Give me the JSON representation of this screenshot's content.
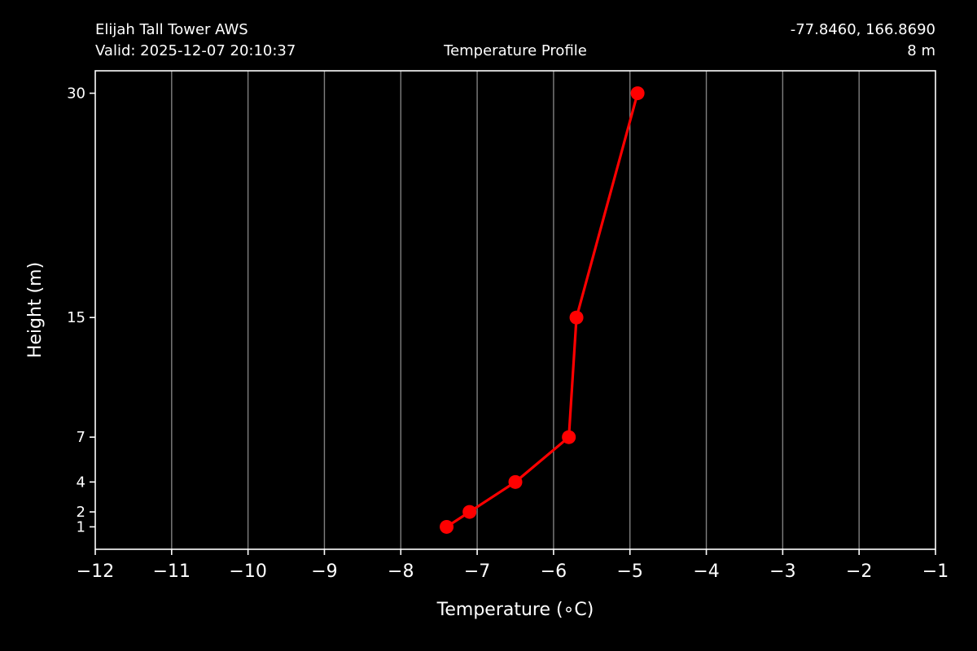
{
  "header": {
    "station": "Elijah Tall Tower AWS",
    "valid": "Valid: 2025-12-07 20:10:37",
    "title": "Temperature Profile",
    "coords": "-77.8460, 166.8690",
    "elevation": "8 m"
  },
  "chart_data": {
    "type": "line",
    "title": "Temperature Profile",
    "xlabel": "Temperature (∘C)",
    "ylabel": "Height (m)",
    "xlim": [
      -12,
      -1
    ],
    "ylim": [
      -0.5,
      31.5
    ],
    "x_ticks": [
      -12,
      -11,
      -10,
      -9,
      -8,
      -7,
      -6,
      -5,
      -4,
      -3,
      -2,
      -1
    ],
    "x_tick_labels": [
      "−12",
      "−11",
      "−10",
      "−9",
      "−8",
      "−7",
      "−6",
      "−5",
      "−4",
      "−3",
      "−2",
      "−1"
    ],
    "y_ticks": [
      1,
      2,
      4,
      7,
      15,
      30
    ],
    "y_tick_labels": [
      "1",
      "2",
      "4",
      "7",
      "15",
      "30"
    ],
    "grid": "vertical",
    "series": [
      {
        "x": [
          -7.4,
          -7.1,
          -6.5,
          -5.8,
          -5.7,
          -4.9
        ],
        "y": [
          1,
          2,
          4,
          7,
          15,
          30
        ],
        "color": "#ff0000",
        "marker": "circle"
      }
    ]
  },
  "colors": {
    "background": "#000000",
    "foreground": "#ffffff",
    "grid": "#808080",
    "series": "#ff0000"
  }
}
